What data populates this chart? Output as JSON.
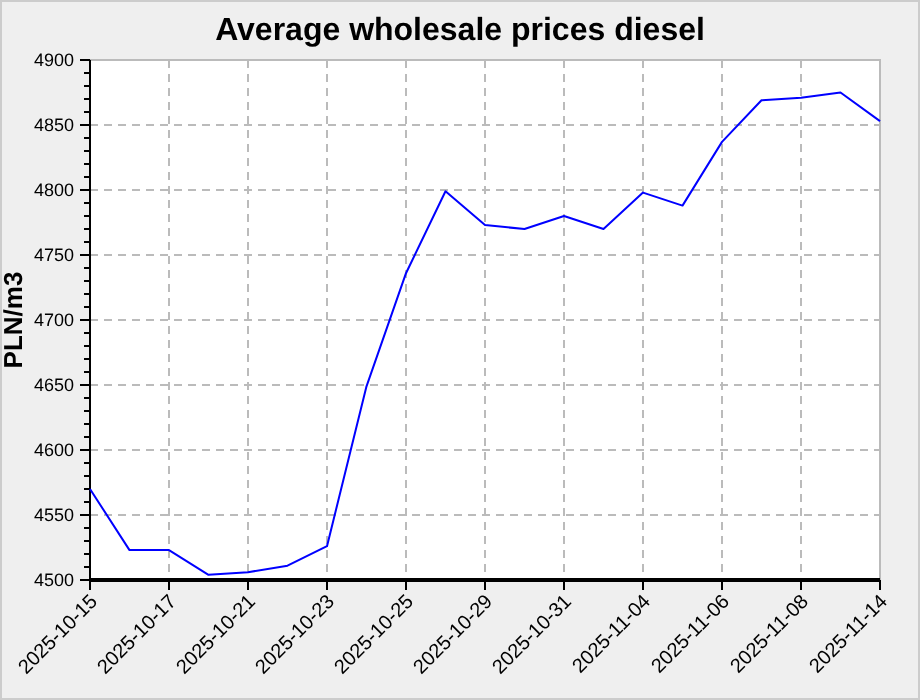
{
  "chart_data": {
    "type": "line",
    "title": "Average wholesale prices diesel",
    "ylabel": "PLN/m3",
    "categories": [
      "2025-10-15",
      null,
      "2025-10-17",
      null,
      "2025-10-21",
      null,
      "2025-10-23",
      null,
      "2025-10-25",
      null,
      "2025-10-29",
      null,
      "2025-10-31",
      null,
      "2025-11-04",
      null,
      "2025-11-06",
      null,
      "2025-11-08",
      null,
      "2025-11-14"
    ],
    "series": [
      {
        "color": "#0000ff",
        "values": [
          4570,
          4523,
          4523,
          4504,
          4506,
          4511,
          4526,
          4649,
          4736,
          4799,
          4773,
          4770,
          4780,
          4770,
          4798,
          4788,
          4837,
          4869,
          4871,
          4875,
          4853
        ]
      }
    ],
    "ylim": [
      4500,
      4900
    ],
    "yticks": [
      4500,
      4550,
      4600,
      4650,
      4700,
      4750,
      4800,
      4850,
      4900
    ],
    "grid": true,
    "marker": "none",
    "line_style": "solid"
  }
}
